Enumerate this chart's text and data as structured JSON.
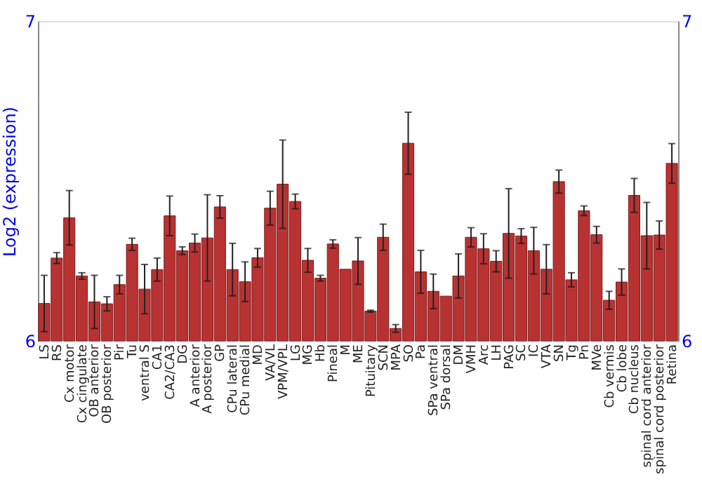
{
  "chart_data": {
    "type": "bar",
    "ylabel": "Log2 (expression)",
    "categories": [
      "LS",
      "RS",
      "Cx motor",
      "Cx cingulate",
      "OB anterior",
      "OB posterior",
      "Pir",
      "Tu",
      "ventral S",
      "CA1",
      "CA2/CA3",
      "DG",
      "A anterior",
      "A posterior",
      "GP",
      "CPu lateral",
      "CPu medial",
      "MD",
      "VA/VL",
      "VPM/VPL",
      "LG",
      "MG",
      "Hb",
      "Pineal",
      "M",
      "ME",
      "Pituitary",
      "SCN",
      "MPA",
      "SO",
      "Pa",
      "SPa ventral",
      "SPa dorsal",
      "DM",
      "VMH",
      "Arc",
      "LH",
      "PAG",
      "SC",
      "IC",
      "VTA",
      "SN",
      "Tg",
      "Pn",
      "MVe",
      "Cb vermis",
      "Cb lobe",
      "Cb nucleus",
      "spinal cord anterior",
      "spinal cord posterior",
      "Retina"
    ],
    "values": [
      6.117,
      6.259,
      6.385,
      6.203,
      6.122,
      6.116,
      6.176,
      6.302,
      6.162,
      6.223,
      6.391,
      6.282,
      6.306,
      6.322,
      6.419,
      6.223,
      6.185,
      6.26,
      6.415,
      6.49,
      6.436,
      6.252,
      6.196,
      6.303,
      6.224,
      6.25,
      6.093,
      6.324,
      6.039,
      6.618,
      6.216,
      6.155,
      6.14,
      6.203,
      6.324,
      6.288,
      6.249,
      6.336,
      6.328,
      6.282,
      6.224,
      6.498,
      6.191,
      6.407,
      6.332,
      6.127,
      6.184,
      6.455,
      6.329,
      6.331,
      6.555
    ],
    "errors": [
      0.088,
      0.017,
      0.085,
      0.01,
      0.083,
      0.022,
      0.029,
      0.019,
      0.077,
      0.036,
      0.062,
      0.012,
      0.028,
      0.135,
      0.035,
      0.082,
      0.062,
      0.029,
      0.053,
      0.138,
      0.023,
      0.037,
      0.009,
      0.013,
      null,
      0.073,
      0.003,
      0.041,
      0.012,
      0.097,
      0.067,
      0.054,
      null,
      0.069,
      0.03,
      0.047,
      0.033,
      0.14,
      0.023,
      0.073,
      0.077,
      0.036,
      0.022,
      0.015,
      0.026,
      0.028,
      0.041,
      0.053,
      0.104,
      0.044,
      0.062
    ],
    "color": "#b83232",
    "ylim": [
      6,
      7
    ],
    "yticks": [
      6,
      7
    ],
    "y2lim": [
      6,
      7
    ],
    "y2ticks": [
      6,
      7
    ],
    "grid": false
  }
}
